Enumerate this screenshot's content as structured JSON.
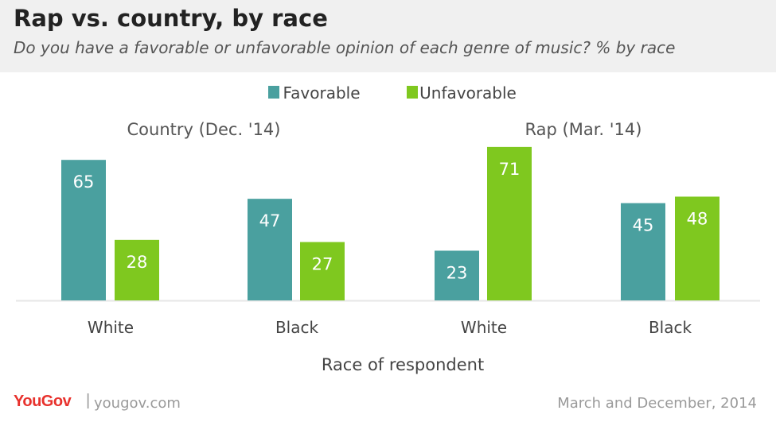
{
  "header": {
    "title": "Rap vs. country, by race",
    "subtitle": "Do you have a favorable or unfavorable opinion of each genre of music? % by race"
  },
  "footer": {
    "brand": "YouGov",
    "separator": "|",
    "site": "yougov.com",
    "date": "March and December, 2014"
  },
  "colors": {
    "favorable": "#4aa09f",
    "unfavorable": "#7fc81f",
    "label_text": "#ffffff",
    "axis_text": "#444444",
    "panel_text": "#555555",
    "baseline": "#e6e6e6",
    "brand": "#e8322d"
  },
  "chart_data": {
    "type": "bar",
    "title": "Rap vs. country, by race",
    "subtitle": "Do you have a favorable or unfavorable opinion of each genre of music? % by race",
    "xlabel": "Race of respondent",
    "ylabel": "",
    "ylim": [
      0,
      71
    ],
    "grid": false,
    "legend": {
      "position": "top-center",
      "entries": [
        "Favorable",
        "Unfavorable"
      ]
    },
    "panels": [
      {
        "title": "Country (Dec. '14)",
        "categories": [
          "White",
          "Black"
        ],
        "series": [
          {
            "name": "Favorable",
            "values": [
              65,
              47
            ]
          },
          {
            "name": "Unfavorable",
            "values": [
              28,
              27
            ]
          }
        ]
      },
      {
        "title": "Rap (Mar. '14)",
        "categories": [
          "White",
          "Black"
        ],
        "series": [
          {
            "name": "Favorable",
            "values": [
              23,
              45
            ]
          },
          {
            "name": "Unfavorable",
            "values": [
              71,
              48
            ]
          }
        ]
      }
    ]
  }
}
